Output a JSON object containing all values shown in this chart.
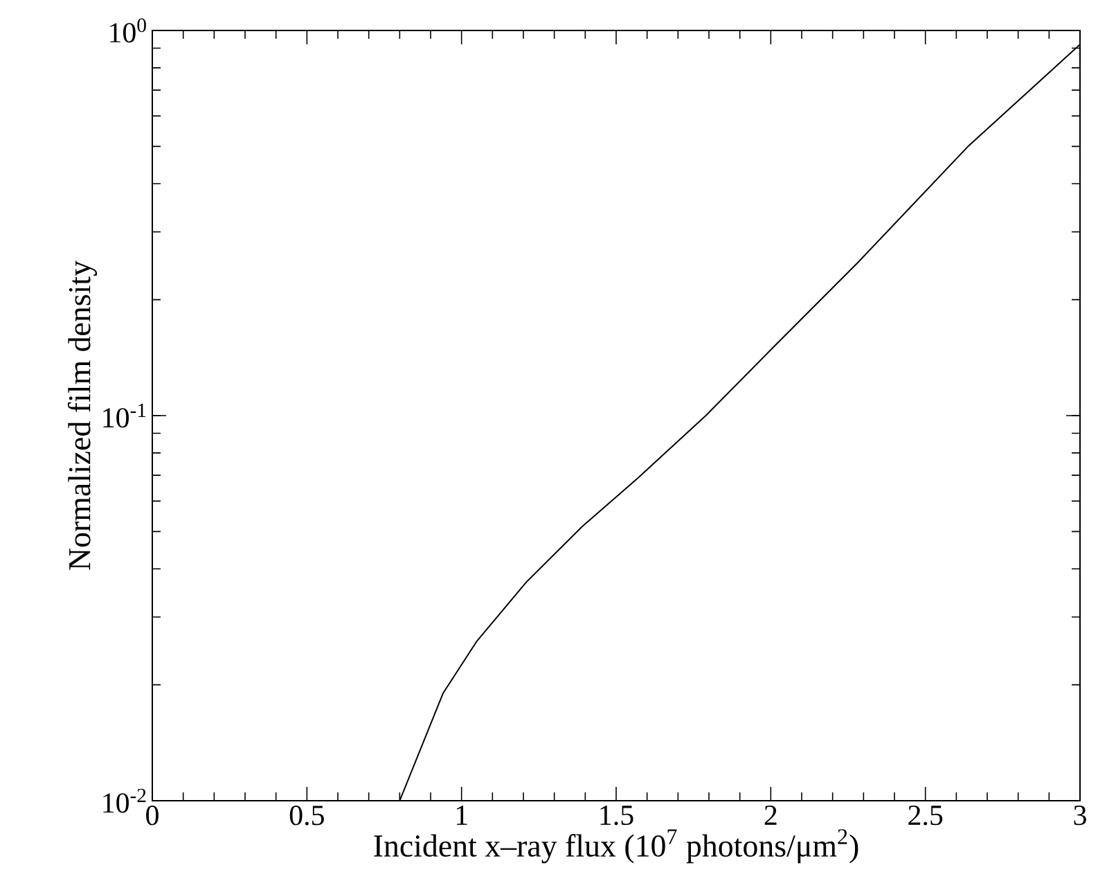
{
  "chart_data": {
    "type": "line",
    "xlabel": "Incident x–ray flux (10$^{7}$ photons/μm$^{2}$)",
    "ylabel": "Normalized film density",
    "log": "y",
    "xlim": [
      0,
      3
    ],
    "ylim": [
      0.01,
      1
    ],
    "xticks": [
      0,
      0.5,
      1,
      1.5,
      2,
      2.5,
      3
    ],
    "yticks": [
      {
        "value": 0.01,
        "label": "10$^{-2}$"
      },
      {
        "value": 0.1,
        "label": "10$^{-1}$"
      },
      {
        "value": 1,
        "label": "10$^{0}$"
      }
    ],
    "marker": "none",
    "line_style": "solid",
    "grid": false,
    "series": [
      {
        "color": "#000000",
        "x": [
          0.8,
          0.94,
          1.05,
          1.21,
          1.39,
          1.57,
          1.79,
          2.01,
          2.28,
          2.64,
          3.0
        ],
        "values": [
          0.01,
          0.019,
          0.026,
          0.037,
          0.0515,
          0.0688,
          0.1,
          0.151,
          0.249,
          0.502,
          0.92
        ]
      }
    ]
  }
}
